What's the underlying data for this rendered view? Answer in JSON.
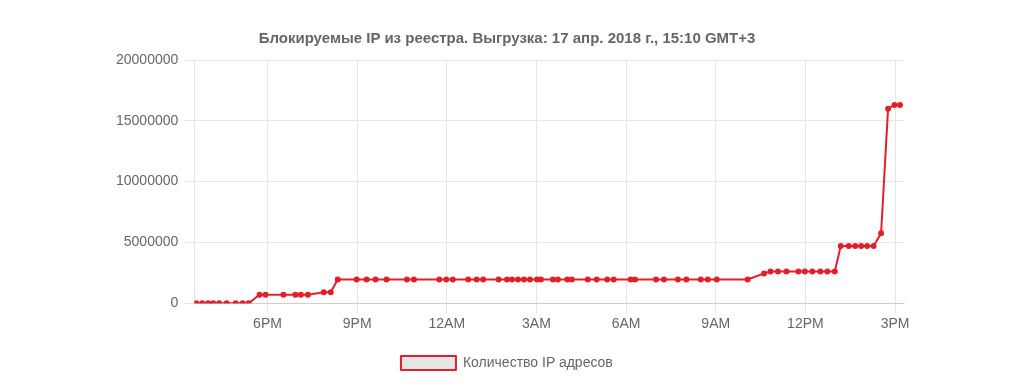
{
  "chart_data": {
    "type": "line",
    "title": "Блокируемые IP из реестра. Выгрузка: 17 апр. 2018 г., 15:10 GMT+3",
    "x": [
      "2018-04-16T15:37",
      "2018-04-16T15:49",
      "2018-04-16T16:01",
      "2018-04-16T16:11",
      "2018-04-16T16:23",
      "2018-04-16T16:38",
      "2018-04-16T16:56",
      "2018-04-16T17:10",
      "2018-04-16T17:22",
      "2018-04-16T17:44",
      "2018-04-16T17:56",
      "2018-04-16T18:32",
      "2018-04-16T18:56",
      "2018-04-16T19:07",
      "2018-04-16T19:21",
      "2018-04-16T19:53",
      "2018-04-16T20:07",
      "2018-04-16T20:21",
      "2018-04-16T20:59",
      "2018-04-16T21:19",
      "2018-04-16T21:37",
      "2018-04-16T21:59",
      "2018-04-16T22:40",
      "2018-04-16T22:54",
      "2018-04-16T23:45",
      "2018-04-16T23:59",
      "2018-04-17T00:12",
      "2018-04-17T00:43",
      "2018-04-17T01:00",
      "2018-04-17T01:13",
      "2018-04-17T01:44",
      "2018-04-17T02:01",
      "2018-04-17T02:11",
      "2018-04-17T02:23",
      "2018-04-17T02:35",
      "2018-04-17T02:47",
      "2018-04-17T03:01",
      "2018-04-17T03:09",
      "2018-04-17T03:33",
      "2018-04-17T03:43",
      "2018-04-17T04:02",
      "2018-04-17T04:11",
      "2018-04-17T04:43",
      "2018-04-17T05:01",
      "2018-04-17T05:22",
      "2018-04-17T05:35",
      "2018-04-17T06:09",
      "2018-04-17T06:18",
      "2018-04-17T07:00",
      "2018-04-17T07:16",
      "2018-04-17T07:44",
      "2018-04-17T08:01",
      "2018-04-17T08:30",
      "2018-04-17T08:44",
      "2018-04-17T09:02",
      "2018-04-17T10:04",
      "2018-04-17T10:37",
      "2018-04-17T10:50",
      "2018-04-17T11:05",
      "2018-04-17T11:22",
      "2018-04-17T11:46",
      "2018-04-17T11:59",
      "2018-04-17T12:14",
      "2018-04-17T12:30",
      "2018-04-17T12:44",
      "2018-04-17T12:59",
      "2018-04-17T13:11",
      "2018-04-17T13:27",
      "2018-04-17T13:40",
      "2018-04-17T13:52",
      "2018-04-17T14:04",
      "2018-04-17T14:17",
      "2018-04-17T14:32",
      "2018-04-17T14:46",
      "2018-04-17T14:59",
      "2018-04-17T15:10"
    ],
    "series": [
      {
        "name": "Количество IP адресов",
        "color": "#e0202a",
        "values": [
          0,
          0,
          0,
          0,
          0,
          0,
          0,
          0,
          0,
          700000,
          700000,
          700000,
          700000,
          700000,
          700000,
          900000,
          900000,
          1950000,
          1950000,
          1950000,
          1950000,
          1950000,
          1950000,
          1950000,
          1950000,
          1950000,
          1950000,
          1950000,
          1950000,
          1950000,
          1950000,
          1950000,
          1950000,
          1950000,
          1950000,
          1950000,
          1950000,
          1950000,
          1950000,
          1950000,
          1950000,
          1950000,
          1950000,
          1950000,
          1950000,
          1950000,
          1950000,
          1950000,
          1950000,
          1950000,
          1950000,
          1950000,
          1950000,
          1950000,
          1950000,
          1950000,
          2450000,
          2600000,
          2600000,
          2600000,
          2600000,
          2600000,
          2600000,
          2600000,
          2600000,
          2600000,
          4700000,
          4700000,
          4700000,
          4700000,
          4700000,
          4700000,
          5750000,
          16000000,
          16300000,
          16300000
        ]
      }
    ],
    "xlim": [
      "2018-04-16T15:33",
      "2018-04-17T15:18"
    ],
    "xticks": [
      {
        "value": "2018-04-16T18:00",
        "label": "6PM"
      },
      {
        "value": "2018-04-16T21:00",
        "label": "9PM"
      },
      {
        "value": "2018-04-17T00:00",
        "label": "12AM"
      },
      {
        "value": "2018-04-17T03:00",
        "label": "3AM"
      },
      {
        "value": "2018-04-17T06:00",
        "label": "6AM"
      },
      {
        "value": "2018-04-17T09:00",
        "label": "9AM"
      },
      {
        "value": "2018-04-17T12:00",
        "label": "12PM"
      },
      {
        "value": "2018-04-17T15:00",
        "label": "3PM"
      }
    ],
    "ylim": [
      0,
      20000000
    ],
    "yticks": [
      0,
      5000000,
      10000000,
      15000000,
      20000000
    ],
    "grid": true,
    "legend": "bottom",
    "marker": "circle",
    "line_style": "solid"
  }
}
